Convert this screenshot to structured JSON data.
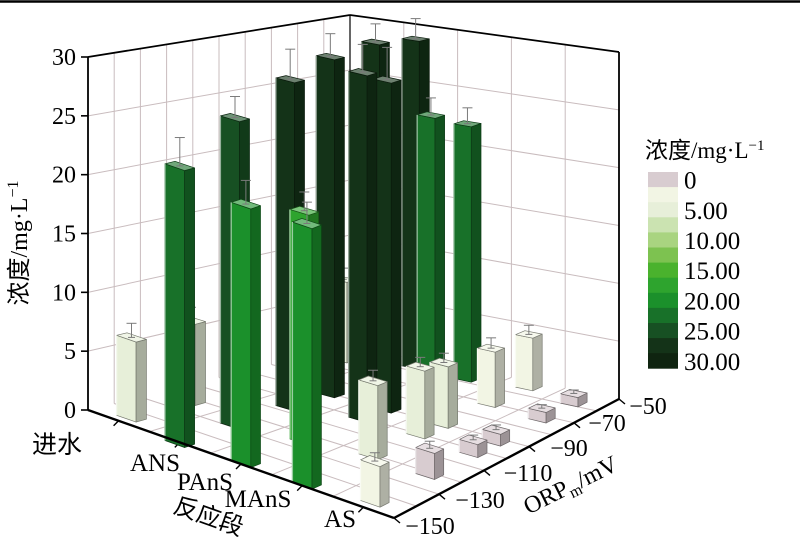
{
  "figure": {
    "background": "#ffffff",
    "top_border_color": "#000000"
  },
  "chart_data": {
    "type": "bar",
    "subtype": "3d-colormap-bars",
    "title": "",
    "y_axis": {
      "title_base": "浓度/mg·L",
      "title_sup": "−1",
      "min": 0,
      "max": 30,
      "tick_step": 5,
      "ticks": [
        "0",
        "5",
        "10",
        "15",
        "20",
        "25",
        "30"
      ]
    },
    "stage_axis": {
      "title": "反应段",
      "categories": [
        "进水",
        "ANS",
        "PAnS",
        "MAnS",
        "AS"
      ]
    },
    "orp_axis": {
      "title_main": "ORP",
      "title_sub": "m",
      "title_unit": "/mV",
      "min": -150,
      "max": -50,
      "ticks": [
        "−150",
        "−130",
        "−110",
        "−90",
        "−70",
        "−50"
      ],
      "minor_grid_step": 10
    },
    "legend": {
      "title_base": "浓度/mg·L",
      "title_sup": "−1",
      "labels": [
        "0",
        "5.00",
        "10.00",
        "15.00",
        "20.00",
        "25.00",
        "30.00"
      ],
      "band_size": 2.5,
      "band_colors": [
        "#d8ccd0",
        "#f2f5e4",
        "#e7efd9",
        "#cbe3b1",
        "#a9d480",
        "#7dc250",
        "#4ab22d",
        "#2ea42e",
        "#1b902b",
        "#187129",
        "#175023",
        "#143318",
        "#0f2410"
      ]
    },
    "grid": {
      "line_color": "#c9bcbe",
      "wall_color": "#ffffff",
      "edge_color": "#000000"
    },
    "series": [
      {
        "stage": "进水",
        "bars": [
          {
            "orp": -145,
            "value": 6.8,
            "err": 1.2
          },
          {
            "orp": -122,
            "value": 7.0,
            "err": 1.1
          },
          {
            "orp": -101,
            "value": 7.3,
            "err": 1.2
          },
          {
            "orp": -83,
            "value": 7.4,
            "err": 1.3
          },
          {
            "orp": -63,
            "value": 7.2,
            "err": 1.0
          }
        ]
      },
      {
        "stage": "ANS",
        "bars": [
          {
            "orp": -150,
            "value": 23.4,
            "err": 2.4
          },
          {
            "orp": -128,
            "value": 26.3,
            "err": 1.8
          },
          {
            "orp": -106,
            "value": 28.4,
            "err": 2.6
          },
          {
            "orp": -90,
            "value": 29.5,
            "err": 2.0
          },
          {
            "orp": -72,
            "value": 29.8,
            "err": 1.6
          },
          {
            "orp": -56,
            "value": 29.2,
            "err": 1.8
          }
        ]
      },
      {
        "stage": "PAnS",
        "bars": [
          {
            "orp": -148,
            "value": 21.8,
            "err": 2.0
          },
          {
            "orp": -124,
            "value": 19.6,
            "err": 1.6
          },
          {
            "orp": -100,
            "value": 29.9,
            "err": 2.4
          },
          {
            "orp": -90,
            "value": 28.6,
            "err": 2.8
          },
          {
            "orp": -72,
            "value": 24.3,
            "err": 1.5
          },
          {
            "orp": -57,
            "value": 22.5,
            "err": 1.4
          }
        ]
      },
      {
        "stage": "MAnS",
        "bars": [
          {
            "orp": -148,
            "value": 21.9,
            "err": 1.8
          },
          {
            "orp": -120,
            "value": 6.3,
            "err": 0.9
          },
          {
            "orp": -100,
            "value": 5.8,
            "err": 0.8
          },
          {
            "orp": -90,
            "value": 5.3,
            "err": 0.8
          },
          {
            "orp": -70,
            "value": 4.8,
            "err": 0.9
          },
          {
            "orp": -54,
            "value": 4.6,
            "err": 0.8
          }
        ]
      },
      {
        "stage": "AS",
        "bars": [
          {
            "orp": -145,
            "value": 3.4,
            "err": 0.7
          },
          {
            "orp": -121,
            "value": 2.2,
            "err": 0.6
          },
          {
            "orp": -102,
            "value": 1.1,
            "err": 0.4
          },
          {
            "orp": -92,
            "value": 1.0,
            "err": 0.4
          },
          {
            "orp": -72,
            "value": 0.9,
            "err": 0.3
          },
          {
            "orp": -58,
            "value": 0.8,
            "err": 0.3
          }
        ]
      }
    ]
  }
}
